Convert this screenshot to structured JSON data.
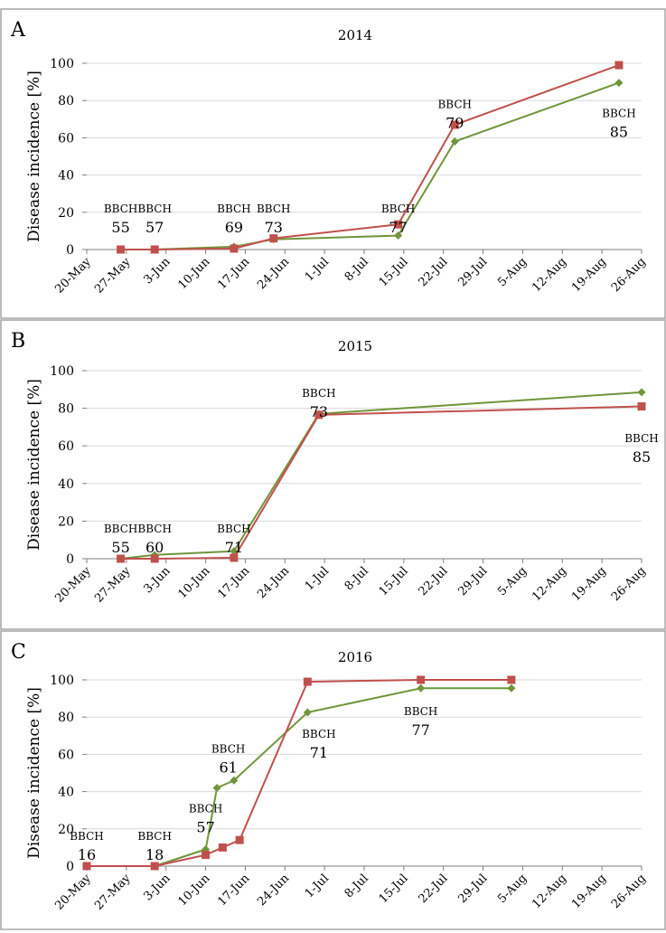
{
  "chart_data": [
    {
      "type": "line",
      "panel": "A",
      "title": "2014",
      "ylabel": "Disease incidence [%]",
      "ylim": [
        0,
        100
      ],
      "yticks": [
        "0",
        "20",
        "40",
        "60",
        "80",
        "100"
      ],
      "xlim": [
        "2014-05-20",
        "2014-08-26"
      ],
      "xtick_labels": [
        "20-May",
        "27-May",
        "3-Jun",
        "10-Jun",
        "17-Jun",
        "24-Jun",
        "1-Jul",
        "8-Jul",
        "15-Jul",
        "22-Jul",
        "29-Jul",
        "5-Aug",
        "12-Aug",
        "19-Aug",
        "26-Aug"
      ],
      "grid": "horizontal",
      "series": [
        {
          "color": "#70953a",
          "marker": "diamond",
          "points": [
            [
              "2014-05-26",
              0
            ],
            [
              "2014-06-01",
              0
            ],
            [
              "2014-06-15",
              1.5
            ],
            [
              "2014-06-22",
              5.5
            ],
            [
              "2014-07-14",
              7.5
            ],
            [
              "2014-07-24",
              58
            ],
            [
              "2014-08-22",
              89.5
            ]
          ]
        },
        {
          "color": "#c0504d",
          "marker": "square",
          "points": [
            [
              "2014-05-26",
              0
            ],
            [
              "2014-06-01",
              0
            ],
            [
              "2014-06-15",
              0.5
            ],
            [
              "2014-06-22",
              6
            ],
            [
              "2014-07-14",
              13.5
            ],
            [
              "2014-07-24",
              67
            ],
            [
              "2014-08-22",
              99
            ]
          ]
        }
      ],
      "annotations": [
        {
          "label": "BBCH",
          "value": "55",
          "x": "2014-05-26",
          "y": 20
        },
        {
          "label": "BBCH",
          "value": "57",
          "x": "2014-06-01",
          "y": 20
        },
        {
          "label": "BBCH",
          "value": "69",
          "x": "2014-06-15",
          "y": 20
        },
        {
          "label": "BBCH",
          "value": "73",
          "x": "2014-06-22",
          "y": 20
        },
        {
          "label": "BBCH",
          "value": "77",
          "x": "2014-07-14",
          "y": 20
        },
        {
          "label": "BBCH",
          "value": "79",
          "x": "2014-07-24",
          "y": 76
        },
        {
          "label": "BBCH",
          "value": "85",
          "x": "2014-08-22",
          "y": 71
        }
      ]
    },
    {
      "type": "line",
      "panel": "B",
      "title": "2015",
      "ylabel": "Disease incidence [%]",
      "ylim": [
        0,
        100
      ],
      "yticks": [
        "0",
        "20",
        "40",
        "60",
        "80",
        "100"
      ],
      "xlim": [
        "2015-05-20",
        "2015-08-26"
      ],
      "xtick_labels": [
        "20-May",
        "27-May",
        "3-Jun",
        "10-Jun",
        "17-Jun",
        "24-Jun",
        "1-Jul",
        "8-Jul",
        "15-Jul",
        "22-Jul",
        "29-Jul",
        "5-Aug",
        "12-Aug",
        "19-Aug",
        "26-Aug"
      ],
      "grid": "horizontal",
      "series": [
        {
          "color": "#70953a",
          "marker": "diamond",
          "points": [
            [
              "2015-05-26",
              0
            ],
            [
              "2015-06-01",
              2
            ],
            [
              "2015-06-15",
              4
            ],
            [
              "2015-06-30",
              77
            ],
            [
              "2015-08-26",
              88.5
            ]
          ]
        },
        {
          "color": "#c0504d",
          "marker": "square",
          "points": [
            [
              "2015-05-26",
              0
            ],
            [
              "2015-06-01",
              0
            ],
            [
              "2015-06-15",
              0.5
            ],
            [
              "2015-06-30",
              76.5
            ],
            [
              "2015-08-26",
              81
            ]
          ]
        }
      ],
      "annotations": [
        {
          "label": "BBCH",
          "value": "55",
          "x": "2015-05-26",
          "y": 14
        },
        {
          "label": "BBCH",
          "value": "60",
          "x": "2015-06-01",
          "y": 14
        },
        {
          "label": "BBCH",
          "value": "71",
          "x": "2015-06-15",
          "y": 14
        },
        {
          "label": "BBCH",
          "value": "73",
          "x": "2015-06-30",
          "y": 86
        },
        {
          "label": "BBCH",
          "value": "85",
          "x": "2015-08-26",
          "y": 62
        }
      ]
    },
    {
      "type": "line",
      "panel": "C",
      "title": "2016",
      "ylabel": "Disease incidence [%]",
      "ylim": [
        0,
        100
      ],
      "yticks": [
        "0",
        "20",
        "40",
        "60",
        "80",
        "100"
      ],
      "xlim": [
        "2016-05-20",
        "2016-08-26"
      ],
      "xtick_labels": [
        "20-May",
        "27-May",
        "3-Jun",
        "10-Jun",
        "17-Jun",
        "24-Jun",
        "1-Jul",
        "8-Jul",
        "15-Jul",
        "22-Jul",
        "29-Jul",
        "5-Aug",
        "12-Aug",
        "19-Aug",
        "26-Aug"
      ],
      "grid": "horizontal",
      "series": [
        {
          "color": "#70953a",
          "marker": "diamond",
          "points": [
            [
              "2016-05-20",
              0
            ],
            [
              "2016-06-01",
              0
            ],
            [
              "2016-06-10",
              9
            ],
            [
              "2016-06-12",
              42
            ],
            [
              "2016-06-15",
              46
            ],
            [
              "2016-06-28",
              82.5
            ],
            [
              "2016-07-18",
              95.5
            ],
            [
              "2016-08-03",
              95.5
            ]
          ]
        },
        {
          "color": "#c0504d",
          "marker": "square",
          "points": [
            [
              "2016-05-20",
              0
            ],
            [
              "2016-06-01",
              0
            ],
            [
              "2016-06-10",
              6
            ],
            [
              "2016-06-13",
              10
            ],
            [
              "2016-06-16",
              14
            ],
            [
              "2016-06-28",
              99
            ],
            [
              "2016-07-18",
              100
            ],
            [
              "2016-08-03",
              100
            ]
          ]
        }
      ],
      "annotations": [
        {
          "label": "BBCH",
          "value": "16",
          "x": "2016-05-20",
          "y": 14
        },
        {
          "label": "BBCH",
          "value": "18",
          "x": "2016-06-01",
          "y": 14
        },
        {
          "label": "BBCH",
          "value": "57",
          "x": "2016-06-10",
          "y": 29
        },
        {
          "label": "BBCH",
          "value": "61",
          "x": "2016-06-14",
          "y": 61
        },
        {
          "label": "BBCH",
          "value": "71",
          "x": "2016-06-30",
          "y": 69
        },
        {
          "label": "BBCH",
          "value": "77",
          "x": "2016-07-18",
          "y": 81
        }
      ]
    }
  ]
}
